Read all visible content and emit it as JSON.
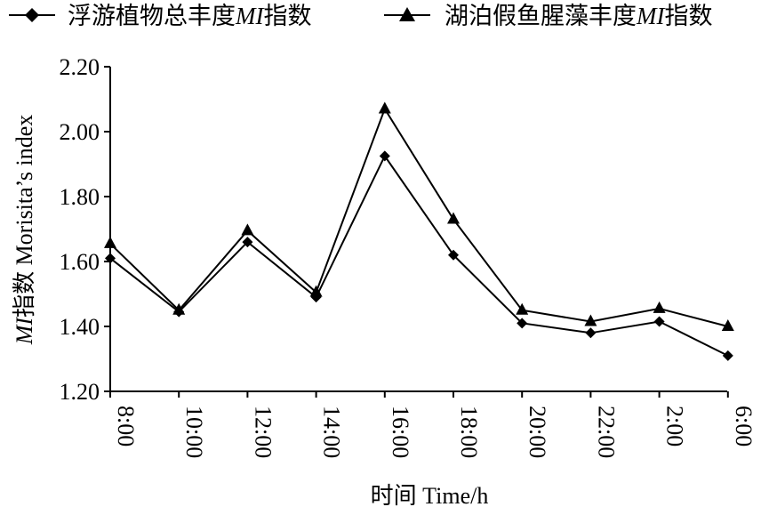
{
  "chart_data": {
    "type": "line",
    "categories": [
      "8:00",
      "10:00",
      "12:00",
      "14:00",
      "16:00",
      "18:00",
      "20:00",
      "22:00",
      "2:00",
      "6:00"
    ],
    "series": [
      {
        "name": "浮游植物总丰度MI指数",
        "name_parts": [
          "浮游植物总丰度",
          "MI",
          "指数"
        ],
        "marker": "diamond",
        "values": [
          1.61,
          1.445,
          1.66,
          1.49,
          1.925,
          1.62,
          1.41,
          1.38,
          1.415,
          1.31
        ]
      },
      {
        "name": "湖泊假鱼腥藻丰度MI指数",
        "name_parts": [
          "湖泊假鱼腥藻丰度",
          "MI",
          "指数"
        ],
        "marker": "triangle",
        "values": [
          1.655,
          1.45,
          1.695,
          1.505,
          2.07,
          1.73,
          1.45,
          1.415,
          1.455,
          1.4
        ]
      }
    ],
    "xlabel": "时间 Time/h",
    "ylabel": "MI指数 Morisita’s index",
    "ylabel_parts": [
      "MI",
      "指数 Morisita’s index"
    ],
    "ylim": [
      1.2,
      2.2
    ],
    "yticks": [
      "1.20",
      "1.40",
      "1.60",
      "1.80",
      "2.00",
      "2.20"
    ],
    "grid": false,
    "legend_position": "top"
  }
}
